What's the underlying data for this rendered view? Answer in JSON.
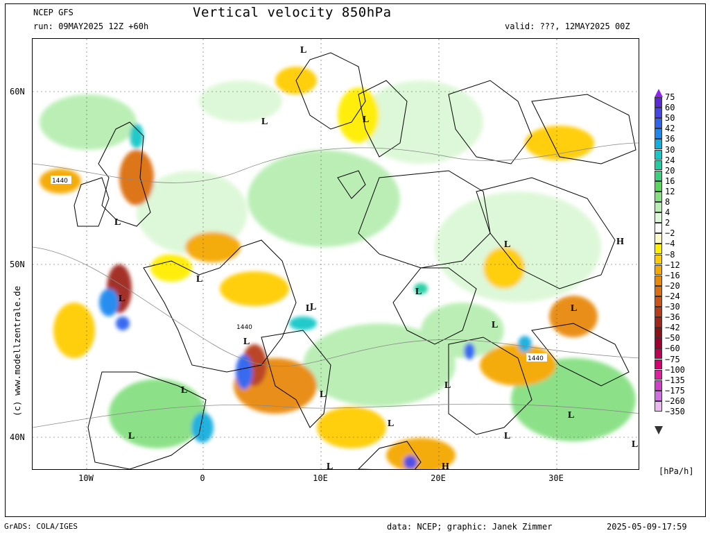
{
  "header": {
    "model": "NCEP GFS",
    "run": "run: 09MAY2025 12Z +60h",
    "title": "Vertical velocity 850hPa",
    "valid": "valid: ???, 12MAY2025 00Z"
  },
  "axes": {
    "lat_labels": [
      "60N",
      "50N",
      "40N"
    ],
    "lon_labels": [
      "10W",
      "0",
      "10E",
      "20E",
      "30E"
    ]
  },
  "map_labels": {
    "lows": [
      "L",
      "L",
      "L",
      "L",
      "L",
      "L",
      "L",
      "L",
      "L",
      "L",
      "L",
      "L",
      "L",
      "L",
      "L",
      "L",
      "L",
      "L",
      "L",
      "L",
      "L",
      "L"
    ],
    "highs": [
      "H",
      "H"
    ],
    "isohypses": [
      "1440",
      "1440",
      "1440"
    ]
  },
  "legend": {
    "labels": [
      "75",
      "60",
      "50",
      "42",
      "36",
      "30",
      "24",
      "20",
      "16",
      "12",
      "8",
      "4",
      "2",
      "−2",
      "−4",
      "−8",
      "−12",
      "−16",
      "−20",
      "−24",
      "−30",
      "−36",
      "−42",
      "−50",
      "−60",
      "−75",
      "−100",
      "−135",
      "−175",
      "−260",
      "−350"
    ],
    "colors": [
      "#5a2ad8",
      "#4646e6",
      "#2e64f0",
      "#1e88f0",
      "#12aede",
      "#16c8c8",
      "#22cda2",
      "#3cd07c",
      "#5cd65c",
      "#86e082",
      "#b8eeb2",
      "#dcf8d6",
      "#ffffff",
      "#fffbc8",
      "#ffee00",
      "#ffcc00",
      "#f4a800",
      "#e88a08",
      "#dc6e10",
      "#cc5418",
      "#b83c1a",
      "#a0261c",
      "#8c1218",
      "#a00030",
      "#c00050",
      "#d80070",
      "#e020a0",
      "#d040c8",
      "#d070e0",
      "#ecb8f0"
    ],
    "top_arrow_color": "#8a2ae8",
    "bottom_arrow_color": "#ffffff",
    "units": "[hPa/h]"
  },
  "footer": {
    "software": "GrADS: COLA/IGES",
    "credit": "data: NCEP; graphic: Janek Zimmer",
    "timestamp": "2025-05-09-17:59"
  },
  "side_credit": "(c) www.modellzentrale.de"
}
